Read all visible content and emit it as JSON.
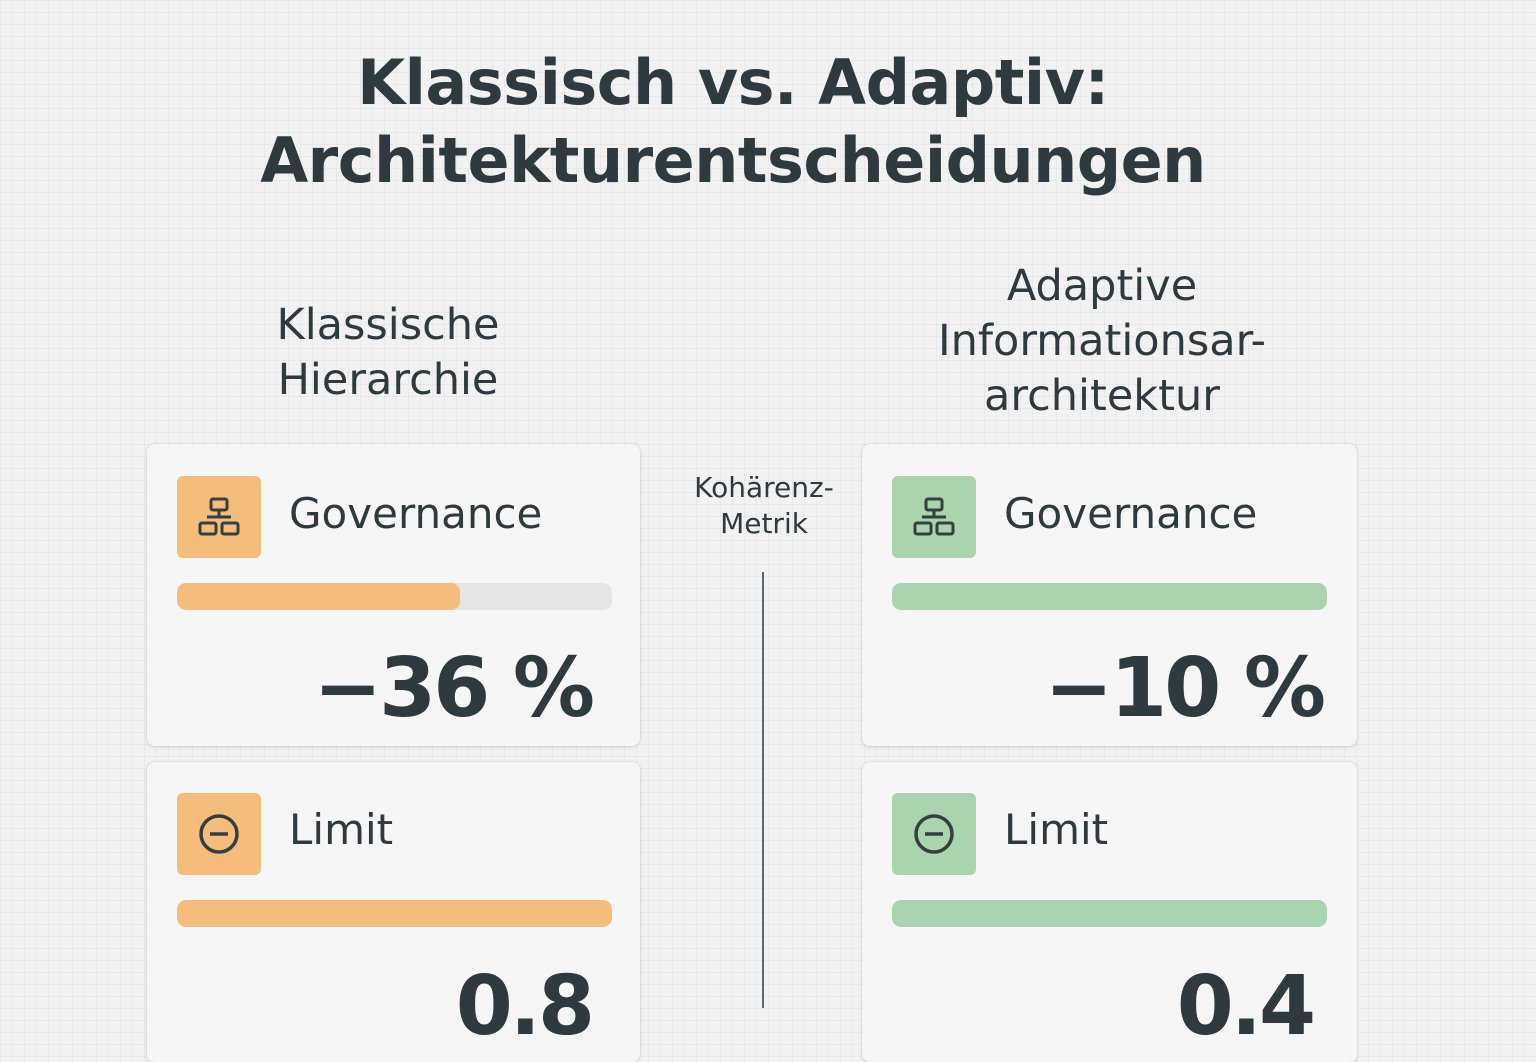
{
  "title": {
    "line1": "Klassisch vs. Adaptiv:",
    "line2": "Architekturentscheidungen"
  },
  "divider": {
    "label_line1": "Kohärenz-",
    "label_line2": "Metrik"
  },
  "columns": [
    {
      "heading_line1": "Klassische",
      "heading_line2": "Hierarchie",
      "heading_line3": "",
      "accent": "#f5bd7c",
      "cards": [
        {
          "icon": "hierarchy-icon",
          "label": "Governance",
          "value": "−36 %",
          "bar_fill": 0.65
        },
        {
          "icon": "minus-circle-icon",
          "label": "Limit",
          "value": "0.8",
          "bar_fill": 1.0
        }
      ]
    },
    {
      "heading_line1": "Adaptive",
      "heading_line2": "Informationsar-",
      "heading_line3": "architektur",
      "accent": "#a9d4ae",
      "cards": [
        {
          "icon": "hierarchy-icon",
          "label": "Governance",
          "value": "−10 %",
          "bar_fill": 1.0
        },
        {
          "icon": "minus-circle-icon",
          "label": "Limit",
          "value": "0.4",
          "bar_fill": 1.0
        }
      ]
    }
  ]
}
